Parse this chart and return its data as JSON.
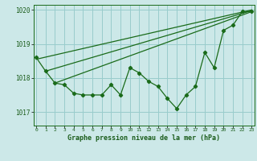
{
  "title": "Graphe pression niveau de la mer (hPa)",
  "background_color": "#cce8e8",
  "grid_color": "#99cccc",
  "line_color": "#1a6b1a",
  "x_values": [
    0,
    1,
    2,
    3,
    4,
    5,
    6,
    7,
    8,
    9,
    10,
    11,
    12,
    13,
    14,
    15,
    16,
    17,
    18,
    19,
    20,
    21,
    22,
    23
  ],
  "series1": [
    1018.6,
    1018.2,
    1017.85,
    1017.8,
    1017.55,
    1017.5,
    1017.5,
    1017.5,
    1017.8,
    1017.5,
    1018.3,
    1018.15,
    1017.9,
    1017.75,
    1017.4,
    1017.1,
    1017.5,
    1017.75,
    1018.75,
    1018.3,
    1019.4,
    1019.55,
    1019.95,
    1019.95
  ],
  "trend_lines": [
    [
      [
        0,
        1018.55
      ],
      [
        23,
        1020.0
      ]
    ],
    [
      [
        1,
        1018.2
      ],
      [
        23,
        1019.98
      ]
    ],
    [
      [
        2,
        1017.85
      ],
      [
        23,
        1019.95
      ]
    ]
  ],
  "ylim": [
    1016.6,
    1020.15
  ],
  "yticks": [
    1017,
    1018,
    1019,
    1020
  ],
  "xlim": [
    -0.3,
    23.3
  ]
}
